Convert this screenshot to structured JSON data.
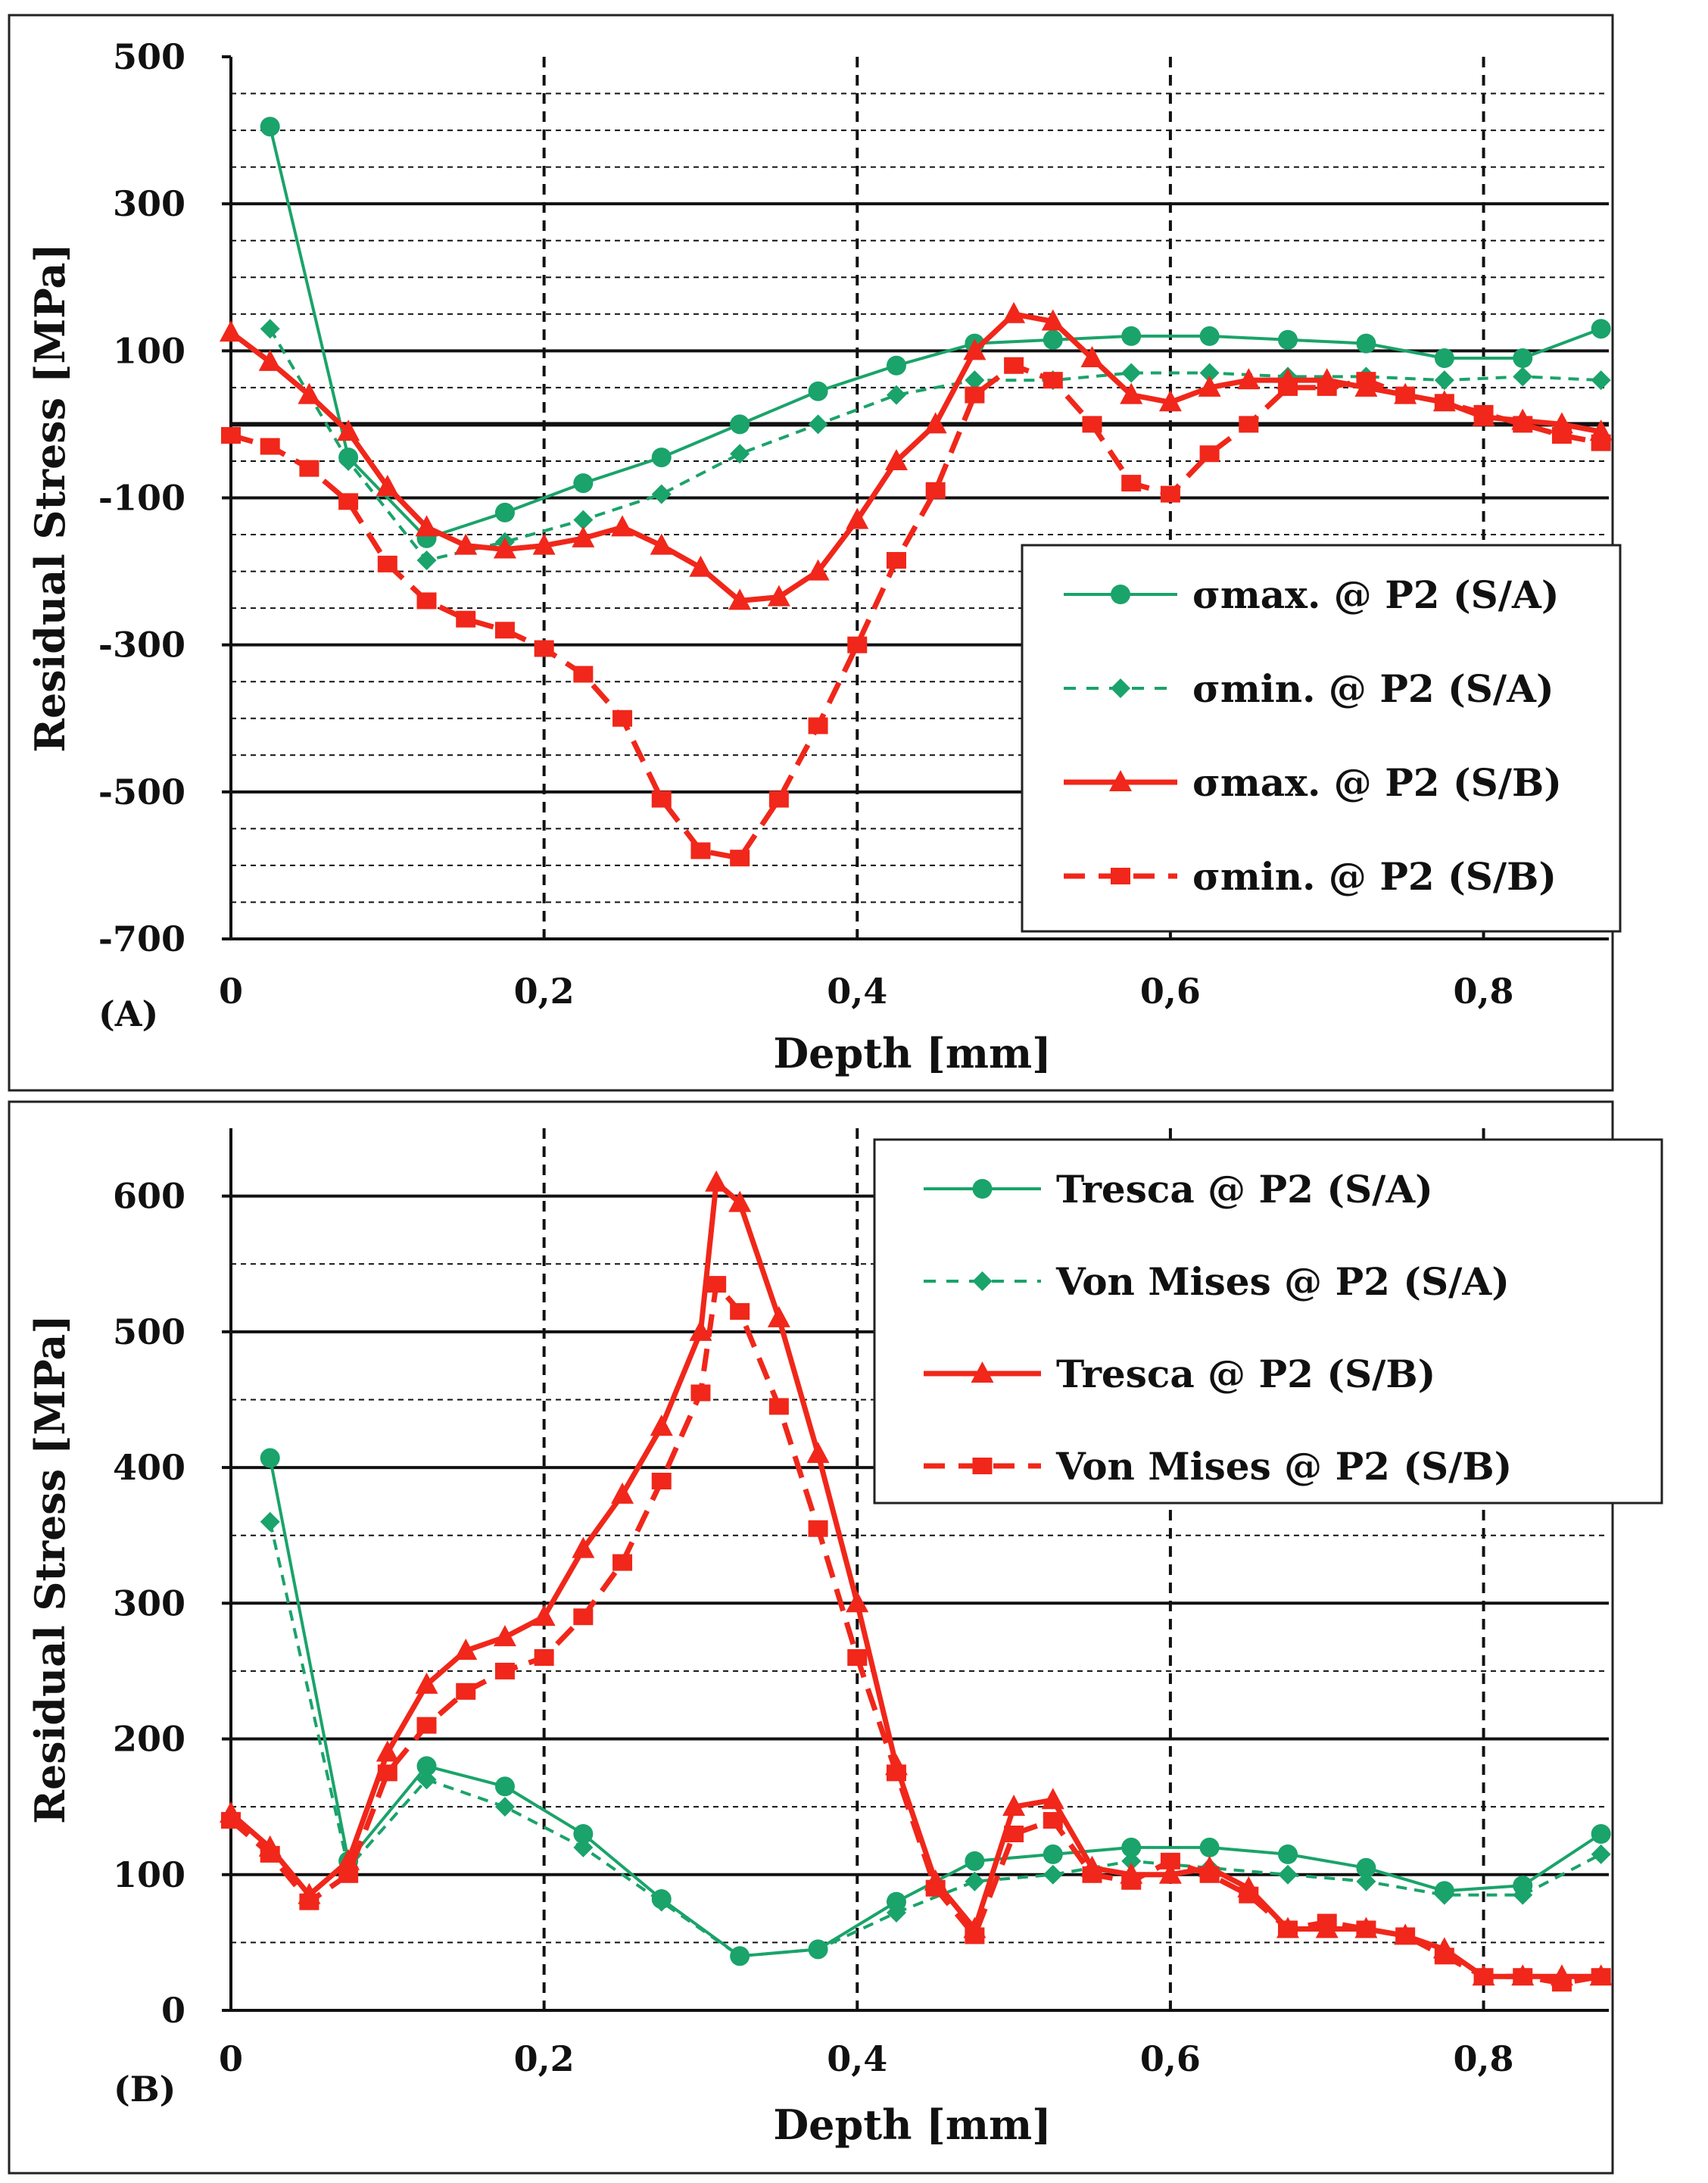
{
  "colors": {
    "green": "#1aa36a",
    "red": "#f0271a",
    "grid": "#111111",
    "frame": "#222222"
  },
  "chart_data": [
    {
      "type": "line",
      "panel_label": "(A)",
      "xlabel": "Depth [mm]",
      "ylabel": "Residual Stress [MPa]",
      "xlim": [
        0,
        0.88
      ],
      "ylim": [
        -700,
        500
      ],
      "x_ticks": [
        "0",
        "0,2",
        "0,4",
        "0,6",
        "0,8"
      ],
      "y_ticks": [
        "500",
        "300",
        "100",
        "-100",
        "-300",
        "-500",
        "-700"
      ],
      "grid": "solid major, dashed minor",
      "legend_position": "bottom-right",
      "series": [
        {
          "name": "σmax. @ P2 (S/A)",
          "color": "#1aa36a",
          "line": "solid",
          "marker": "circle",
          "x": [
            0.025,
            0.075,
            0.125,
            0.175,
            0.225,
            0.275,
            0.325,
            0.375,
            0.425,
            0.475,
            0.525,
            0.575,
            0.625,
            0.675,
            0.725,
            0.775,
            0.825,
            0.875
          ],
          "y": [
            405,
            -45,
            -155,
            -120,
            -80,
            -45,
            0,
            45,
            80,
            110,
            115,
            120,
            120,
            115,
            110,
            90,
            90,
            130
          ]
        },
        {
          "name": "σmin. @ P2 (S/A)",
          "color": "#1aa36a",
          "line": "dashed",
          "marker": "diamond",
          "x": [
            0.025,
            0.075,
            0.125,
            0.175,
            0.225,
            0.275,
            0.325,
            0.375,
            0.425,
            0.475,
            0.525,
            0.575,
            0.625,
            0.675,
            0.725,
            0.775,
            0.825,
            0.875
          ],
          "y": [
            130,
            -50,
            -185,
            -160,
            -130,
            -95,
            -40,
            0,
            40,
            60,
            60,
            70,
            70,
            65,
            65,
            60,
            65,
            60
          ]
        },
        {
          "name": "σmax. @ P2 (S/B)",
          "color": "#f0271a",
          "line": "solid",
          "marker": "triangle",
          "x": [
            0.0,
            0.025,
            0.05,
            0.075,
            0.1,
            0.125,
            0.15,
            0.175,
            0.2,
            0.225,
            0.25,
            0.275,
            0.3,
            0.325,
            0.35,
            0.375,
            0.4,
            0.425,
            0.45,
            0.475,
            0.5,
            0.525,
            0.55,
            0.575,
            0.6,
            0.625,
            0.65,
            0.675,
            0.7,
            0.725,
            0.75,
            0.775,
            0.8,
            0.825,
            0.85,
            0.875
          ],
          "y": [
            125,
            85,
            40,
            -10,
            -85,
            -140,
            -165,
            -170,
            -165,
            -155,
            -140,
            -165,
            -195,
            -240,
            -235,
            -200,
            -130,
            -50,
            0,
            100,
            150,
            140,
            90,
            40,
            30,
            50,
            60,
            60,
            60,
            50,
            40,
            30,
            10,
            5,
            0,
            -10
          ]
        },
        {
          "name": "σmin. @ P2 (S/B)",
          "color": "#f0271a",
          "line": "dashed",
          "marker": "square",
          "x": [
            0.0,
            0.025,
            0.05,
            0.075,
            0.1,
            0.125,
            0.15,
            0.175,
            0.2,
            0.225,
            0.25,
            0.275,
            0.3,
            0.325,
            0.35,
            0.375,
            0.4,
            0.425,
            0.45,
            0.475,
            0.5,
            0.525,
            0.55,
            0.575,
            0.6,
            0.625,
            0.65,
            0.675,
            0.7,
            0.725,
            0.75,
            0.775,
            0.8,
            0.825,
            0.85,
            0.875
          ],
          "y": [
            -15,
            -30,
            -60,
            -105,
            -190,
            -240,
            -265,
            -280,
            -305,
            -340,
            -400,
            -510,
            -580,
            -590,
            -510,
            -410,
            -300,
            -185,
            -90,
            40,
            80,
            60,
            0,
            -80,
            -95,
            -40,
            0,
            50,
            50,
            60,
            40,
            30,
            15,
            0,
            -15,
            -25
          ]
        }
      ]
    },
    {
      "type": "line",
      "panel_label": "(B)",
      "xlabel": "Depth [mm]",
      "ylabel": "Residual Stress [MPa]",
      "xlim": [
        0,
        0.88
      ],
      "ylim": [
        0,
        650
      ],
      "x_ticks": [
        "0",
        "0,2",
        "0,4",
        "0,6",
        "0,8"
      ],
      "y_ticks": [
        "600",
        "500",
        "400",
        "300",
        "200",
        "100",
        "0"
      ],
      "grid": "solid major, dashed minor",
      "legend_position": "top-right",
      "series": [
        {
          "name": "Tresca @ P2 (S/A)",
          "color": "#1aa36a",
          "line": "solid",
          "marker": "circle",
          "x": [
            0.025,
            0.075,
            0.125,
            0.175,
            0.225,
            0.275,
            0.325,
            0.375,
            0.425,
            0.475,
            0.525,
            0.575,
            0.625,
            0.675,
            0.725,
            0.775,
            0.825,
            0.875
          ],
          "y": [
            407,
            110,
            180,
            165,
            130,
            82,
            40,
            45,
            80,
            110,
            115,
            120,
            120,
            115,
            105,
            88,
            92,
            130
          ]
        },
        {
          "name": "Von Mises @ P2 (S/A)",
          "color": "#1aa36a",
          "line": "dashed",
          "marker": "diamond",
          "x": [
            0.025,
            0.075,
            0.125,
            0.175,
            0.225,
            0.275,
            0.325,
            0.375,
            0.425,
            0.475,
            0.525,
            0.575,
            0.625,
            0.675,
            0.725,
            0.775,
            0.825,
            0.875
          ],
          "y": [
            360,
            105,
            170,
            150,
            120,
            80,
            40,
            45,
            72,
            95,
            100,
            110,
            105,
            100,
            95,
            85,
            85,
            115
          ]
        },
        {
          "name": "Tresca @ P2 (S/B)",
          "color": "#f0271a",
          "line": "solid",
          "marker": "triangle",
          "x": [
            0.0,
            0.025,
            0.05,
            0.075,
            0.1,
            0.125,
            0.15,
            0.175,
            0.2,
            0.225,
            0.25,
            0.275,
            0.3,
            0.31,
            0.325,
            0.35,
            0.375,
            0.4,
            0.425,
            0.45,
            0.475,
            0.5,
            0.525,
            0.55,
            0.575,
            0.6,
            0.625,
            0.65,
            0.675,
            0.7,
            0.725,
            0.75,
            0.775,
            0.8,
            0.825,
            0.85,
            0.875
          ],
          "y": [
            145,
            120,
            85,
            110,
            190,
            240,
            265,
            275,
            290,
            340,
            380,
            430,
            500,
            610,
            595,
            510,
            410,
            300,
            180,
            95,
            60,
            150,
            155,
            105,
            100,
            100,
            105,
            90,
            60,
            60,
            60,
            55,
            45,
            25,
            25,
            25,
            25
          ]
        },
        {
          "name": "Von Mises @ P2 (S/B)",
          "color": "#f0271a",
          "line": "dashed",
          "marker": "square",
          "x": [
            0.0,
            0.025,
            0.05,
            0.075,
            0.1,
            0.125,
            0.15,
            0.175,
            0.2,
            0.225,
            0.25,
            0.275,
            0.3,
            0.31,
            0.325,
            0.35,
            0.375,
            0.4,
            0.425,
            0.45,
            0.475,
            0.5,
            0.525,
            0.55,
            0.575,
            0.6,
            0.625,
            0.65,
            0.675,
            0.7,
            0.725,
            0.75,
            0.775,
            0.8,
            0.825,
            0.85,
            0.875
          ],
          "y": [
            140,
            115,
            80,
            100,
            175,
            210,
            235,
            250,
            260,
            290,
            330,
            390,
            455,
            535,
            515,
            445,
            355,
            260,
            175,
            90,
            55,
            130,
            140,
            100,
            95,
            110,
            100,
            85,
            60,
            65,
            60,
            55,
            40,
            25,
            25,
            20,
            25
          ]
        }
      ]
    }
  ]
}
